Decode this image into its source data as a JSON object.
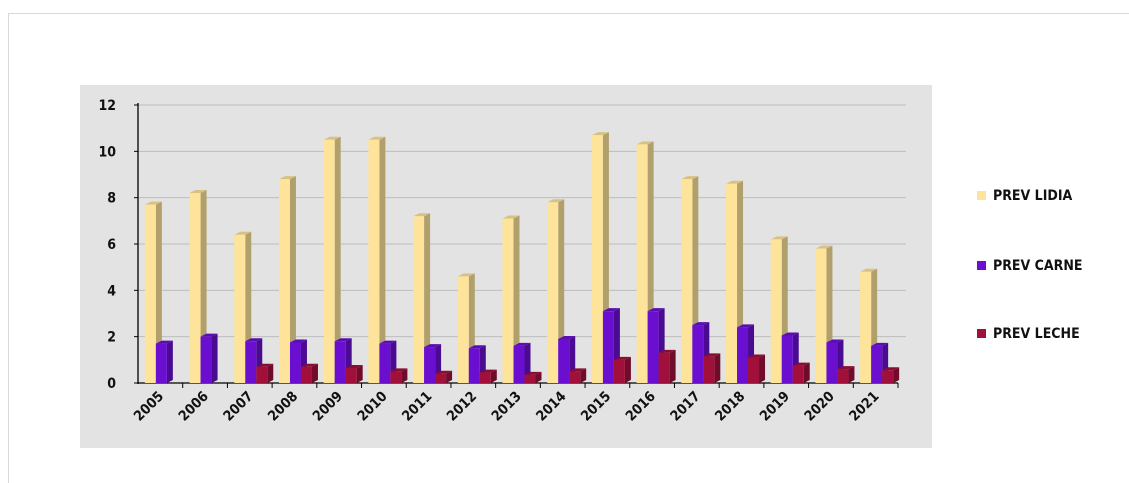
{
  "chart_data": {
    "type": "bar",
    "title": "",
    "xlabel": "",
    "ylabel": "",
    "ylim": [
      0,
      12
    ],
    "yticks": [
      0,
      2,
      4,
      6,
      8,
      10,
      12
    ],
    "grid": true,
    "legend_position": "right",
    "categories": [
      "2005",
      "2006",
      "2007",
      "2008",
      "2009",
      "2010",
      "2011",
      "2012",
      "2013",
      "2014",
      "2015",
      "2016",
      "2017",
      "2018",
      "2019",
      "2020",
      "2021"
    ],
    "series": [
      {
        "name": "PREV LIDIA",
        "color": "#fde49a",
        "values": [
          7.7,
          8.2,
          6.4,
          8.8,
          10.5,
          10.5,
          7.2,
          4.6,
          7.1,
          7.8,
          10.7,
          10.3,
          8.8,
          8.6,
          6.2,
          5.8,
          4.8
        ]
      },
      {
        "name": "PREV CARNE",
        "color": "#6a0fd0",
        "values": [
          1.7,
          2.0,
          1.8,
          1.75,
          1.8,
          1.7,
          1.55,
          1.5,
          1.6,
          1.9,
          3.1,
          3.1,
          2.5,
          2.4,
          2.05,
          1.75,
          1.6
        ]
      },
      {
        "name": "PREV LECHE",
        "color": "#a0103a",
        "values": [
          0.0,
          0.0,
          0.7,
          0.7,
          0.65,
          0.5,
          0.4,
          0.45,
          0.35,
          0.5,
          1.0,
          1.3,
          1.15,
          1.1,
          0.75,
          0.6,
          0.55
        ]
      }
    ]
  }
}
